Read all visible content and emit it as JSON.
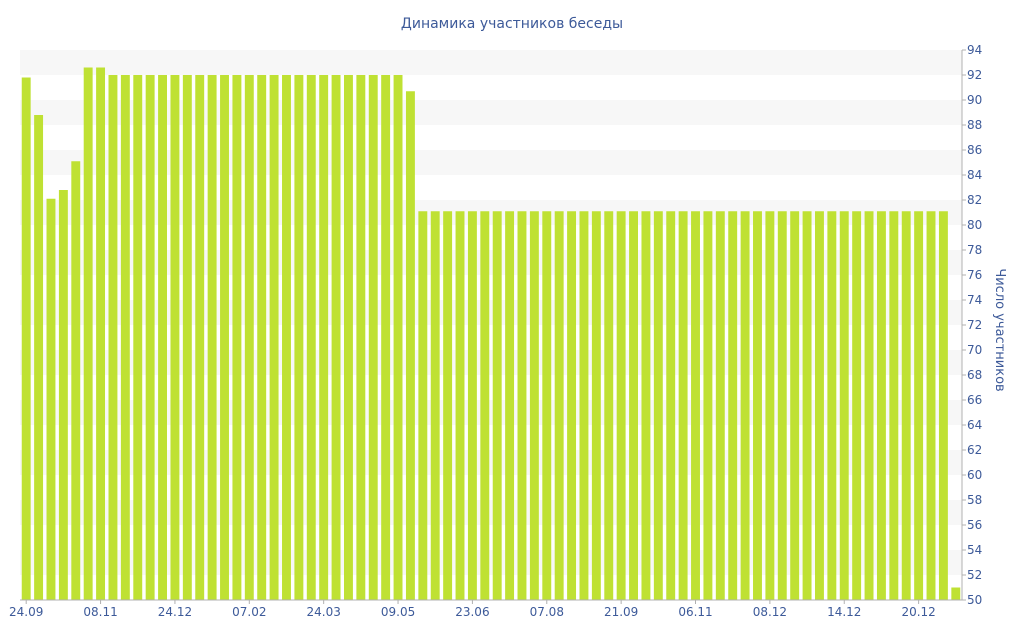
{
  "chart_data": {
    "type": "bar",
    "title": "Динамика участников беседы",
    "ylabel": "Число участников",
    "ylim": [
      50,
      94
    ],
    "ytick_step": 2,
    "x_tick_labels": [
      "24.09",
      "08.11",
      "24.12",
      "07.02",
      "24.03",
      "09.05",
      "23.06",
      "07.08",
      "21.09",
      "06.11",
      "08.12",
      "14.12",
      "20.12"
    ],
    "x_tick_positions": [
      0,
      6,
      12,
      18,
      24,
      30,
      36,
      42,
      48,
      54,
      60,
      66,
      72
    ],
    "values": [
      91.8,
      88.8,
      82.1,
      82.8,
      85.1,
      92.6,
      92.6,
      92,
      92,
      92,
      92,
      92,
      92,
      92,
      92,
      92,
      92,
      92,
      92,
      92,
      92,
      92,
      92,
      92,
      92,
      92,
      92,
      92,
      92,
      92,
      92,
      90.7,
      81.1,
      81.1,
      81.1,
      81.1,
      81.1,
      81.1,
      81.1,
      81.1,
      81.1,
      81.1,
      81.1,
      81.1,
      81.1,
      81.1,
      81.1,
      81.1,
      81.1,
      81.1,
      81.1,
      81.1,
      81.1,
      81.1,
      81.1,
      81.1,
      81.1,
      81.1,
      81.1,
      81.1,
      81.1,
      81.1,
      81.1,
      81.1,
      81.1,
      81.1,
      81.1,
      81.1,
      81.1,
      81.1,
      81.1,
      81.1,
      81.1,
      81.1,
      81.1,
      51
    ],
    "grid": true,
    "y_axis_position": "right",
    "colors": {
      "bar": "#bfe133",
      "band": "#f7f7f7",
      "text": "#3d5a99",
      "axis": "#b0b0b0"
    }
  }
}
